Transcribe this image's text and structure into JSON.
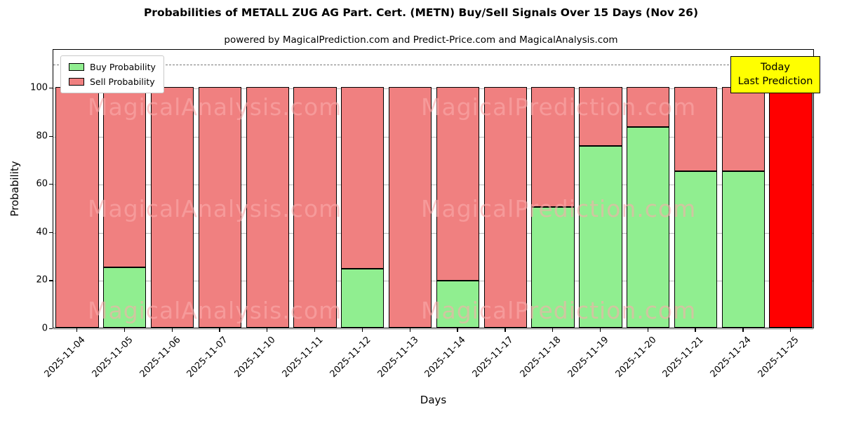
{
  "title": "Probabilities of METALL ZUG AG Part. Cert. (METN) Buy/Sell Signals Over 15 Days (Nov 26)",
  "subtitle": "powered by MagicalPrediction.com and Predict-Price.com and MagicalAnalysis.com",
  "legend": {
    "buy": "Buy Probability",
    "sell": "Sell Probability"
  },
  "annotation": {
    "line1": "Today",
    "line2": "Last Prediction"
  },
  "colors": {
    "buy": "#90EE90",
    "sell": "#F08080",
    "today": "#FF0000",
    "annotation_bg": "#FFFF00",
    "gridline": "#b8b8b8",
    "dashed_line": "#7a7a7a"
  },
  "watermark": {
    "texts": [
      "MagicalAnalysis.com",
      "MagicalPrediction.com"
    ],
    "rows": [
      133,
      278,
      423
    ]
  },
  "chart_data": {
    "type": "bar",
    "stacked": true,
    "categories": [
      "2025-11-04",
      "2025-11-05",
      "2025-11-06",
      "2025-11-07",
      "2025-11-10",
      "2025-11-11",
      "2025-11-12",
      "2025-11-13",
      "2025-11-14",
      "2025-11-17",
      "2025-11-18",
      "2025-11-19",
      "2025-11-20",
      "2025-11-21",
      "2025-11-24",
      "2025-11-25"
    ],
    "series": [
      {
        "name": "Buy Probability",
        "color": "#90EE90",
        "values": [
          0,
          25,
          0,
          0,
          0,
          0,
          24.5,
          0,
          19.5,
          0,
          50,
          75.5,
          83.5,
          65,
          65,
          0
        ]
      },
      {
        "name": "Sell Probability",
        "color": "#F08080",
        "values": [
          100,
          75,
          100,
          100,
          100,
          100,
          75.5,
          100,
          80.5,
          100,
          50,
          24.5,
          16.5,
          35,
          35,
          100
        ]
      }
    ],
    "today_index": 15,
    "xlabel": "Days",
    "ylabel": "Probability",
    "yticks": [
      0,
      20,
      40,
      60,
      80,
      100
    ],
    "ylim": [
      0,
      116
    ],
    "dashed_line_y": 110,
    "legend_position": "upper left",
    "grid": true
  }
}
